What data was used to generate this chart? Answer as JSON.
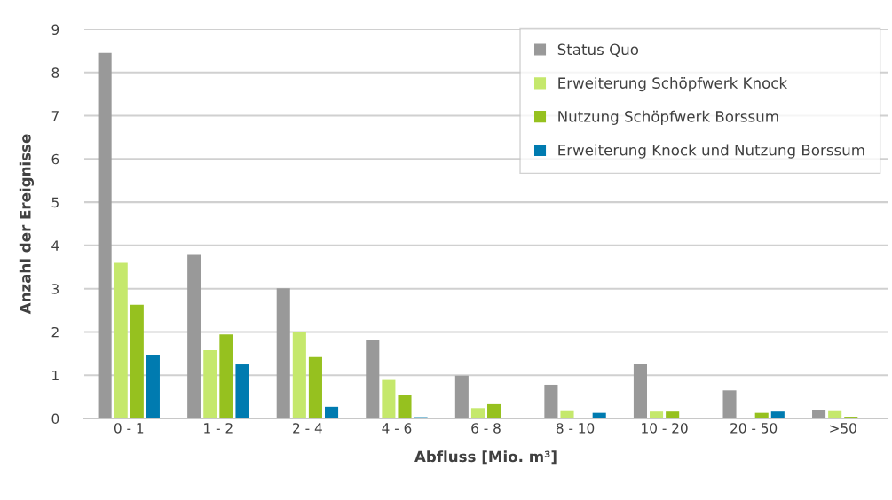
{
  "chart_data": {
    "type": "bar",
    "xlabel": "Abfluss [Mio. m³]",
    "ylabel": "Anzahl der Ereignisse",
    "categories": [
      "0 - 1",
      "1 - 2",
      "2 - 4",
      "4 - 6",
      "6 - 8",
      "8 - 10",
      "10 - 20",
      "20 - 50",
      ">50"
    ],
    "series": [
      {
        "name": "Status Quo",
        "color": "#999999",
        "values": [
          8.45,
          3.78,
          3.01,
          1.82,
          0.99,
          0.78,
          1.25,
          0.65,
          0.2
        ]
      },
      {
        "name": "Erweiterung Schöpfwerk Knock",
        "color": "#c5e86c",
        "values": [
          3.6,
          1.58,
          1.99,
          0.89,
          0.24,
          0.17,
          0.16,
          0,
          0.17
        ]
      },
      {
        "name": "Nutzung Schöpfwerk Borssum",
        "color": "#96c11f",
        "values": [
          2.63,
          1.94,
          1.42,
          0.54,
          0.33,
          0,
          0.16,
          0.13,
          0.04
        ]
      },
      {
        "name": "Erweiterung Knock und Nutzung Borssum",
        "color": "#007bb0",
        "values": [
          1.47,
          1.25,
          0.27,
          0.03,
          0,
          0.13,
          0,
          0.16,
          0
        ]
      }
    ],
    "ylim": [
      0,
      9
    ],
    "yticks": [
      0,
      1,
      2,
      3,
      4,
      5,
      6,
      7,
      8,
      9
    ],
    "grid": "y",
    "legend": "top right"
  }
}
